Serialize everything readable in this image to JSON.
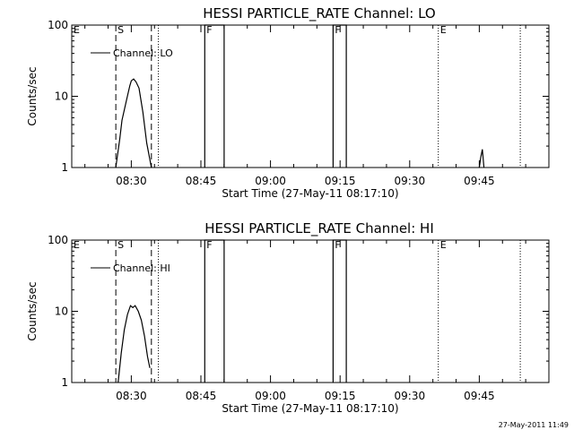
{
  "footer_timestamp": "27-May-2011 11:49",
  "chart_data": [
    {
      "type": "line",
      "title": "HESSI PARTICLE_RATE Channel: LO",
      "xlabel": "Start Time (27-May-11 08:17:10)",
      "ylabel": "Counts/sec",
      "y_scale": "log",
      "ylim": [
        1,
        100
      ],
      "y_ticks": [
        {
          "v": 1,
          "label": "1"
        },
        {
          "v": 10,
          "label": "10"
        },
        {
          "v": 100,
          "label": "100"
        }
      ],
      "xlim": [
        "08:17:10",
        "10:00:00"
      ],
      "x_ticks": [
        "08:30",
        "08:45",
        "09:00",
        "09:15",
        "09:30",
        "09:45"
      ],
      "legend": {
        "placement": "top-left",
        "entries": [
          "Channel: LO"
        ]
      },
      "series": [
        {
          "name": "Channel: LO",
          "segments": [
            {
              "x": [
                "08:26:40",
                "08:27:30",
                "08:28:00",
                "08:29:00",
                "08:29:40",
                "08:30:00",
                "08:30:30",
                "08:31:00",
                "08:31:40",
                "08:32:30",
                "08:33:20",
                "08:34:20"
              ],
              "y": [
                1.0,
                2.5,
                4.6,
                9.0,
                14.0,
                16.5,
                17.5,
                16.0,
                13.0,
                6.0,
                2.2,
                1.0
              ]
            },
            {
              "x": [
                "08:45:50",
                "08:45:50",
                "08:50:00",
                "08:50:00"
              ],
              "y": [
                1,
                100,
                100,
                1
              ]
            },
            {
              "x": [
                "09:13:30",
                "09:13:30",
                "09:16:20",
                "09:16:20"
              ],
              "y": [
                1,
                100,
                100,
                1
              ]
            },
            {
              "x": [
                "09:45:00",
                "09:45:20",
                "09:45:40",
                "09:46:00"
              ],
              "y": [
                1.0,
                1.4,
                1.8,
                1.0
              ]
            }
          ]
        }
      ],
      "markers": [
        {
          "type": "dashed",
          "x": "08:26:40",
          "label": "S"
        },
        {
          "type": "dashed",
          "x": "08:34:20",
          "label": ""
        },
        {
          "type": "dotted",
          "x": "08:35:50",
          "label": ""
        },
        {
          "type": "none",
          "x": "08:17:10",
          "label": "E"
        },
        {
          "type": "none",
          "x": "08:45:50",
          "label": "F"
        },
        {
          "type": "none",
          "x": "09:13:30",
          "label": "F"
        },
        {
          "type": "dotted",
          "x": "09:36:10",
          "label": "E"
        },
        {
          "type": "dotted",
          "x": "09:53:50",
          "label": ""
        }
      ]
    },
    {
      "type": "line",
      "title": "HESSI PARTICLE_RATE Channel: HI",
      "xlabel": "Start Time (27-May-11 08:17:10)",
      "ylabel": "Counts/sec",
      "y_scale": "log",
      "ylim": [
        1,
        100
      ],
      "y_ticks": [
        {
          "v": 1,
          "label": "1"
        },
        {
          "v": 10,
          "label": "10"
        },
        {
          "v": 100,
          "label": "100"
        }
      ],
      "xlim": [
        "08:17:10",
        "10:00:00"
      ],
      "x_ticks": [
        "08:30",
        "08:45",
        "09:00",
        "09:15",
        "09:30",
        "09:45"
      ],
      "legend": {
        "placement": "top-left",
        "entries": [
          "Channel: HI"
        ]
      },
      "series": [
        {
          "name": "Channel: HI",
          "segments": [
            {
              "x": [
                "08:27:10",
                "08:27:50",
                "08:28:30",
                "08:29:10",
                "08:29:50",
                "08:30:20",
                "08:30:50",
                "08:31:30",
                "08:32:10",
                "08:32:50",
                "08:33:30",
                "08:34:00"
              ],
              "y": [
                1.0,
                2.6,
                5.5,
                9.0,
                12.0,
                11.3,
                12.0,
                10.0,
                7.5,
                4.5,
                2.3,
                1.6
              ]
            },
            {
              "x": [
                "08:45:50",
                "08:45:50",
                "08:50:00",
                "08:50:00"
              ],
              "y": [
                1,
                100,
                100,
                1
              ]
            },
            {
              "x": [
                "09:13:30",
                "09:13:30",
                "09:16:20",
                "09:16:20"
              ],
              "y": [
                1,
                100,
                100,
                1
              ]
            }
          ]
        }
      ],
      "markers": [
        {
          "type": "dashed",
          "x": "08:26:40",
          "label": "S"
        },
        {
          "type": "dashed",
          "x": "08:34:20",
          "label": ""
        },
        {
          "type": "dotted",
          "x": "08:35:50",
          "label": ""
        },
        {
          "type": "none",
          "x": "08:17:10",
          "label": "E"
        },
        {
          "type": "none",
          "x": "08:45:50",
          "label": "F"
        },
        {
          "type": "none",
          "x": "09:13:30",
          "label": "F"
        },
        {
          "type": "dotted",
          "x": "09:36:10",
          "label": "E"
        },
        {
          "type": "dotted",
          "x": "09:53:50",
          "label": ""
        }
      ]
    }
  ]
}
